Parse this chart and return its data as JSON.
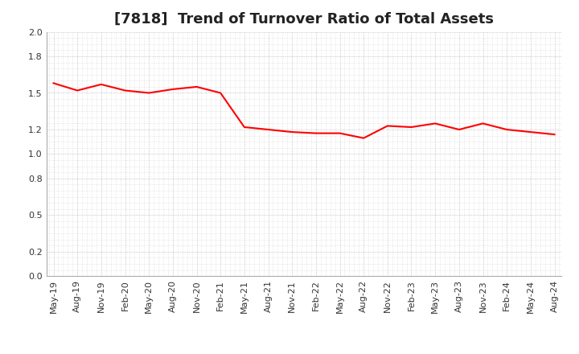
{
  "title": "[7818]  Trend of Turnover Ratio of Total Assets",
  "x_labels": [
    "May-19",
    "Aug-19",
    "Nov-19",
    "Feb-20",
    "May-20",
    "Aug-20",
    "Nov-20",
    "Feb-21",
    "May-21",
    "Aug-21",
    "Nov-21",
    "Feb-22",
    "May-22",
    "Aug-22",
    "Nov-22",
    "Feb-23",
    "May-23",
    "Aug-23",
    "Nov-23",
    "Feb-24",
    "May-24",
    "Aug-24"
  ],
  "values": [
    1.58,
    1.52,
    1.57,
    1.52,
    1.5,
    1.53,
    1.55,
    1.5,
    1.22,
    1.2,
    1.18,
    1.17,
    1.17,
    1.13,
    1.23,
    1.22,
    1.25,
    1.2,
    1.25,
    1.2,
    1.18,
    1.16
  ],
  "line_color": "#FF0000",
  "ylim": [
    0.0,
    2.0
  ],
  "yticks": [
    0.0,
    0.2,
    0.5,
    0.8,
    1.0,
    1.2,
    1.5,
    1.8,
    2.0
  ],
  "background_color": "#FFFFFF",
  "grid_color": "#AAAAAA",
  "title_fontsize": 13,
  "tick_fontsize": 8
}
